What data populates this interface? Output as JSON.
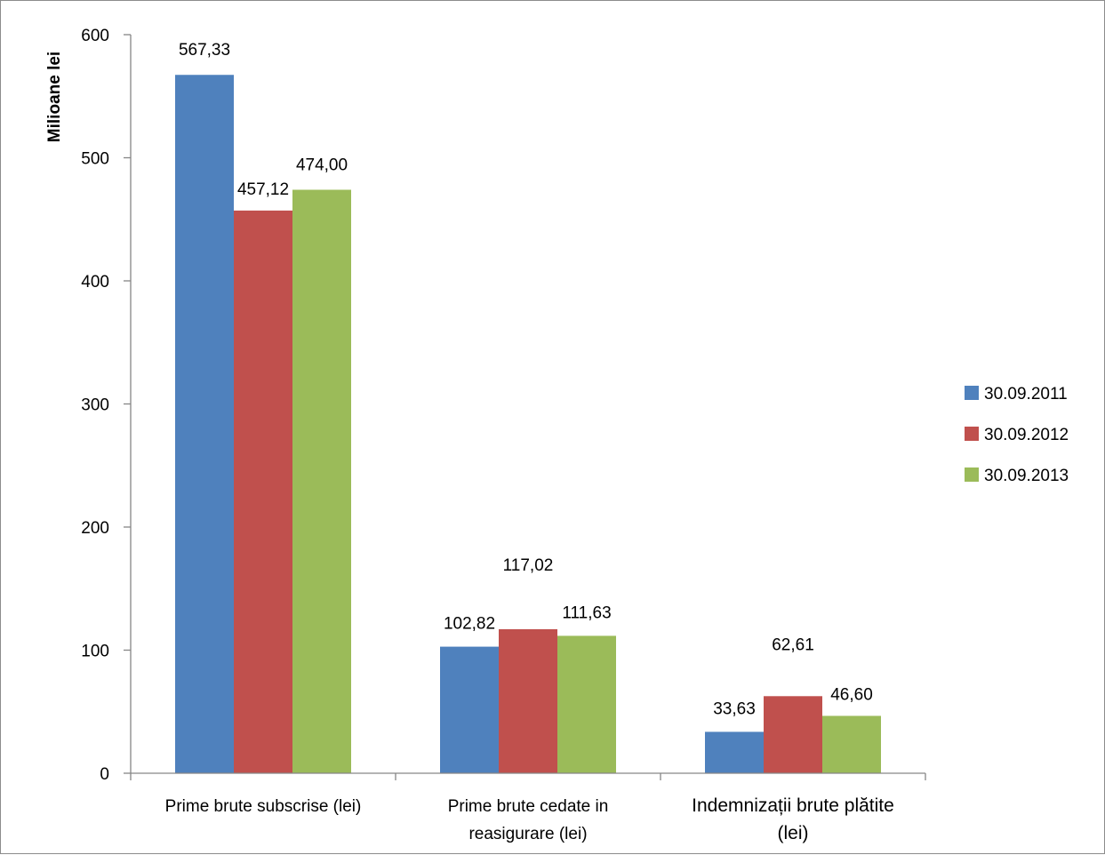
{
  "chart_data": {
    "type": "bar",
    "ylabel": "Milioane lei",
    "xlabel": "",
    "ylim": [
      0,
      600
    ],
    "yticks": [
      0,
      100,
      200,
      300,
      400,
      500,
      600
    ],
    "categories": [
      [
        "Prime brute subscrise (lei)"
      ],
      [
        "Prime brute cedate in",
        "reasigurare (lei)"
      ],
      [
        "Indemnizații brute plătite",
        "(lei)"
      ]
    ],
    "series": [
      {
        "name": "30.09.2011",
        "color": "#4f81bd",
        "values": [
          567.33,
          102.82,
          33.63
        ],
        "labels": [
          "567,33",
          "102,82",
          "33,63"
        ]
      },
      {
        "name": "30.09.2012",
        "color": "#c0504d",
        "values": [
          457.12,
          117.02,
          62.61
        ],
        "labels": [
          "457,12",
          "117,02",
          "62,61"
        ]
      },
      {
        "name": "30.09.2013",
        "color": "#9bbb59",
        "values": [
          474.0,
          111.63,
          46.6
        ],
        "labels": [
          "474,00",
          "111,63",
          "46,60"
        ]
      }
    ],
    "legend_position": "right",
    "grid": false
  }
}
